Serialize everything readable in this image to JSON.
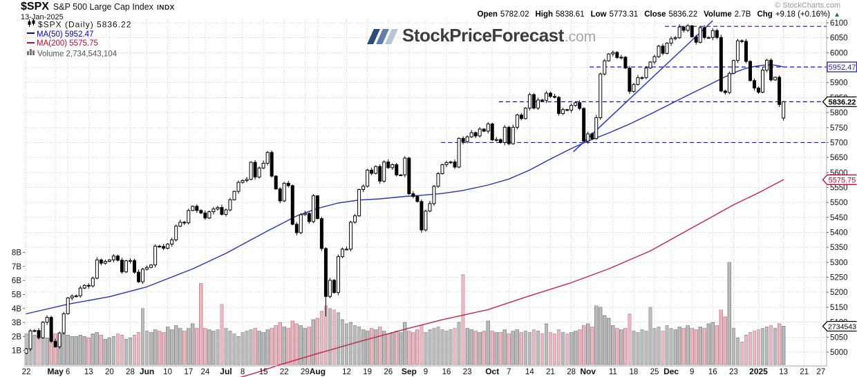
{
  "header": {
    "symbol": "$SPX",
    "name": "S&P 500 Large Cap Index",
    "exchange": "INDX",
    "date": "13-Jan-2025",
    "copyright": "© StockCharts.com",
    "quote": {
      "open_label": "Open",
      "open": "5782.02",
      "high_label": "High",
      "high": "5838.61",
      "low_label": "Low",
      "low": "5773.31",
      "close_label": "Close",
      "close": "5836.22",
      "volume_label": "Volume",
      "volume": "2.7B",
      "chg_label": "Chg",
      "chg": "+9.18 (+0.16%)",
      "direction_icon": "▲"
    }
  },
  "legend": {
    "series": "$SPX (Daily) 5836.22",
    "ma50": "MA(50) 5952.47",
    "ma200": "MA(200) 5575.75",
    "volume": "Volume 2,734,543,104"
  },
  "watermark": {
    "brand": "StockPriceForecast",
    "tld": ".com"
  },
  "colors": {
    "up_candle": "#ffffff",
    "down_candle": "#000000",
    "candle_stroke": "#000000",
    "ma50": "#2233bb",
    "ma200": "#cc2244",
    "dashed_line": "#1111cc",
    "trendline": "#2f3fd0",
    "vol_up_fill": "#bababa",
    "vol_up_stroke": "#8d8d8d",
    "vol_down_fill": "#eab8c0",
    "vol_down_stroke": "#c08a94",
    "grid": "#d6d6d6",
    "axis_line": "#aaaaaa",
    "axis_text": "#111111"
  },
  "chart_data": {
    "type": "candlestick+volume",
    "title": "$SPX S&P 500 Large Cap Index daily candles with MA(50), MA(200) and volume",
    "date_range": "22-Apr-2024 to 13-Jan-2025",
    "price_axis": {
      "min": 5000,
      "max": 6100,
      "step": 50
    },
    "price_ticks": [
      6100,
      6050,
      6000,
      5950,
      5900,
      5850,
      5800,
      5750,
      5700,
      5650,
      5600,
      5550,
      5500,
      5450,
      5400,
      5350,
      5300,
      5250,
      5200,
      5150,
      5100,
      5050,
      5000
    ],
    "volume_axis_ticks": [
      {
        "label": "8B",
        "v": 8
      },
      {
        "label": "7B",
        "v": 7
      },
      {
        "label": "6B",
        "v": 6
      },
      {
        "label": "5B",
        "v": 5
      },
      {
        "label": "4B",
        "v": 4
      },
      {
        "label": "3B",
        "v": 3
      },
      {
        "label": "2B",
        "v": 2
      },
      {
        "label": "1B",
        "v": 1
      }
    ],
    "x_ticks": [
      {
        "index": 0,
        "label": "22",
        "bold": false
      },
      {
        "index": 7,
        "label": "May",
        "bold": true
      },
      {
        "index": 10,
        "label": "6",
        "bold": false
      },
      {
        "index": 15,
        "label": "13",
        "bold": false
      },
      {
        "index": 20,
        "label": "20",
        "bold": false
      },
      {
        "index": 25,
        "label": "28",
        "bold": false
      },
      {
        "index": 29,
        "label": "Jun",
        "bold": true
      },
      {
        "index": 34,
        "label": "10",
        "bold": false
      },
      {
        "index": 39,
        "label": "17",
        "bold": false
      },
      {
        "index": 43,
        "label": "24",
        "bold": false
      },
      {
        "index": 48,
        "label": "Jul",
        "bold": true
      },
      {
        "index": 52,
        "label": "8",
        "bold": false
      },
      {
        "index": 57,
        "label": "15",
        "bold": false
      },
      {
        "index": 62,
        "label": "22",
        "bold": false
      },
      {
        "index": 67,
        "label": "29",
        "bold": false
      },
      {
        "index": 70,
        "label": "Aug",
        "bold": true
      },
      {
        "index": 77,
        "label": "12",
        "bold": false
      },
      {
        "index": 82,
        "label": "19",
        "bold": false
      },
      {
        "index": 87,
        "label": "26",
        "bold": false
      },
      {
        "index": 92,
        "label": "Sep",
        "bold": true
      },
      {
        "index": 96,
        "label": "9",
        "bold": false
      },
      {
        "index": 101,
        "label": "16",
        "bold": false
      },
      {
        "index": 106,
        "label": "23",
        "bold": false
      },
      {
        "index": 112,
        "label": "Oct",
        "bold": true
      },
      {
        "index": 116,
        "label": "7",
        "bold": false
      },
      {
        "index": 121,
        "label": "14",
        "bold": false
      },
      {
        "index": 126,
        "label": "21",
        "bold": false
      },
      {
        "index": 131,
        "label": "28",
        "bold": false
      },
      {
        "index": 135,
        "label": "Nov",
        "bold": true
      },
      {
        "index": 141,
        "label": "11",
        "bold": false
      },
      {
        "index": 146,
        "label": "18",
        "bold": false
      },
      {
        "index": 151,
        "label": "25",
        "bold": false
      },
      {
        "index": 155,
        "label": "Dec",
        "bold": true
      },
      {
        "index": 160,
        "label": "9",
        "bold": false
      },
      {
        "index": 165,
        "label": "16",
        "bold": false
      },
      {
        "index": 170,
        "label": "23",
        "bold": false
      },
      {
        "index": 176,
        "label": "2025",
        "bold": true
      },
      {
        "index": 182,
        "label": "13",
        "bold": false
      },
      {
        "index": 187,
        "label": "21",
        "bold": false
      },
      {
        "index": 191,
        "label": "27",
        "bold": false
      }
    ],
    "closes": [
      5011,
      5071,
      5072,
      5048,
      5100,
      5116,
      5036,
      5018,
      5064,
      5128,
      5181,
      5187,
      5188,
      5214,
      5223,
      5221,
      5247,
      5308,
      5297,
      5303,
      5308,
      5321,
      5307,
      5268,
      5305,
      5306,
      5267,
      5235,
      5277,
      5283,
      5291,
      5354,
      5353,
      5347,
      5361,
      5375,
      5421,
      5434,
      5432,
      5473,
      5487,
      5473,
      5465,
      5448,
      5469,
      5478,
      5483,
      5460,
      5475,
      5509,
      5537,
      5567,
      5573,
      5577,
      5634,
      5585,
      5615,
      5631,
      5667,
      5588,
      5545,
      5505,
      5564,
      5556,
      5427,
      5399,
      5459,
      5463,
      5436,
      5522,
      5446,
      5346,
      5186,
      5240,
      5199,
      5319,
      5344,
      5344,
      5434,
      5455,
      5543,
      5554,
      5608,
      5597,
      5620,
      5571,
      5635,
      5616,
      5626,
      5592,
      5592,
      5648,
      5529,
      5520,
      5503,
      5408,
      5471,
      5496,
      5554,
      5596,
      5626,
      5633,
      5635,
      5618,
      5714,
      5703,
      5719,
      5733,
      5722,
      5745,
      5738,
      5762,
      5709,
      5710,
      5700,
      5751,
      5696,
      5751,
      5792,
      5780,
      5815,
      5860,
      5815,
      5842,
      5841,
      5865,
      5854,
      5851,
      5797,
      5810,
      5808,
      5824,
      5833,
      5814,
      5705,
      5729,
      5713,
      5783,
      5929,
      5973,
      5996,
      6001,
      5984,
      5985,
      5949,
      5871,
      5894,
      5917,
      5917,
      5949,
      5969,
      5987,
      6022,
      5998,
      6032,
      6047,
      6050,
      6086,
      6075,
      6090,
      6053,
      6035,
      6084,
      6051,
      6051,
      6074,
      6051,
      5872,
      5867,
      5931,
      5974,
      6040,
      6038,
      5971,
      5907,
      5882,
      5868,
      5942,
      5975,
      5909,
      5918,
      5827,
      5836.22
    ],
    "volumes_billions": [
      2.2,
      2.0,
      2.1,
      2.3,
      2.2,
      1.9,
      2.1,
      2.2,
      2.1,
      2.2,
      2.1,
      2.0,
      2.0,
      2.1,
      2.0,
      1.9,
      2.2,
      2.3,
      2.1,
      1.8,
      1.9,
      2.0,
      2.2,
      2.1,
      1.8,
      1.9,
      2.1,
      2.3,
      4.0,
      2.4,
      2.3,
      2.5,
      2.4,
      2.3,
      2.7,
      2.5,
      2.8,
      2.6,
      2.4,
      2.6,
      2.9,
      2.6,
      5.8,
      2.6,
      2.5,
      2.4,
      2.5,
      4.3,
      2.6,
      2.4,
      2.2,
      2.0,
      2.3,
      2.4,
      2.5,
      2.6,
      2.4,
      2.3,
      2.5,
      2.6,
      2.8,
      3.0,
      2.7,
      2.6,
      3.1,
      2.9,
      2.8,
      2.6,
      2.7,
      3.2,
      3.3,
      3.8,
      4.2,
      4.0,
      3.9,
      3.7,
      3.2,
      2.9,
      3.0,
      2.8,
      2.7,
      2.5,
      2.4,
      2.6,
      2.5,
      2.7,
      2.4,
      2.2,
      2.3,
      2.4,
      2.3,
      3.0,
      2.4,
      2.3,
      2.5,
      2.8,
      2.3,
      2.5,
      2.6,
      2.7,
      2.5,
      2.4,
      2.5,
      2.6,
      3.0,
      6.4,
      2.6,
      2.5,
      2.4,
      2.3,
      2.4,
      3.1,
      2.4,
      2.3,
      2.3,
      2.5,
      2.2,
      2.4,
      2.5,
      2.3,
      2.4,
      2.3,
      2.5,
      2.4,
      2.2,
      2.9,
      2.3,
      2.2,
      2.5,
      2.3,
      2.2,
      2.3,
      2.4,
      2.5,
      2.8,
      2.9,
      2.7,
      4.2,
      4.1,
      3.5,
      3.3,
      2.8,
      2.6,
      2.5,
      2.6,
      3.6,
      2.4,
      2.3,
      2.5,
      2.4,
      4.1,
      2.6,
      2.7,
      2.4,
      2.8,
      2.6,
      2.5,
      2.7,
      2.6,
      2.8,
      2.6,
      2.5,
      2.7,
      2.6,
      2.9,
      3.0,
      2.8,
      3.9,
      3.4,
      7.3,
      2.6,
      1.9,
      1.6,
      2.1,
      2.3,
      2.4,
      2.5,
      2.6,
      2.7,
      2.8,
      2.6,
      2.9,
      2.73
    ],
    "first_open": 4996,
    "wick_overrides": {
      "72": {
        "high": 5350,
        "low": 5119
      }
    },
    "last_candle": {
      "open": 5782.02,
      "high": 5838.61,
      "low": 5773.31,
      "close": 5836.22
    },
    "ma50_points": [
      [
        0,
        5128
      ],
      [
        10,
        5160
      ],
      [
        20,
        5185
      ],
      [
        29,
        5218
      ],
      [
        40,
        5278
      ],
      [
        48,
        5330
      ],
      [
        58,
        5405
      ],
      [
        65,
        5455
      ],
      [
        70,
        5480
      ],
      [
        75,
        5498
      ],
      [
        80,
        5508
      ],
      [
        85,
        5512
      ],
      [
        91,
        5520
      ],
      [
        95,
        5524
      ],
      [
        100,
        5530
      ],
      [
        105,
        5540
      ],
      [
        111,
        5558
      ],
      [
        116,
        5578
      ],
      [
        121,
        5608
      ],
      [
        126,
        5645
      ],
      [
        131,
        5680
      ],
      [
        135,
        5705
      ],
      [
        140,
        5732
      ],
      [
        145,
        5762
      ],
      [
        150,
        5795
      ],
      [
        154,
        5823
      ],
      [
        159,
        5858
      ],
      [
        164,
        5892
      ],
      [
        167,
        5913
      ],
      [
        169,
        5926
      ],
      [
        171,
        5938
      ],
      [
        173,
        5948
      ],
      [
        175,
        5954
      ],
      [
        177,
        5958
      ],
      [
        179,
        5960
      ],
      [
        181,
        5956
      ],
      [
        182,
        5952.47
      ]
    ],
    "ma200_points": [
      [
        45,
        4890
      ],
      [
        55,
        4930
      ],
      [
        61,
        4958
      ],
      [
        70,
        4995
      ],
      [
        80,
        5035
      ],
      [
        92,
        5080
      ],
      [
        100,
        5108
      ],
      [
        111,
        5142
      ],
      [
        121,
        5188
      ],
      [
        131,
        5232
      ],
      [
        140,
        5278
      ],
      [
        150,
        5338
      ],
      [
        160,
        5415
      ],
      [
        170,
        5492
      ],
      [
        176,
        5532
      ],
      [
        182,
        5575.75
      ]
    ],
    "trendline": {
      "from_index": 131.5,
      "from_price": 5669,
      "to_index": 165,
      "to_price": 6107
    },
    "hlines": [
      {
        "price": 6088,
        "from_index": 153.5
      },
      {
        "price": 5952.47,
        "from_index": 135.4
      },
      {
        "price": 5836.22,
        "from_index": 113.6
      },
      {
        "price": 5700,
        "from_index": 99.7
      }
    ],
    "price_label_boxes": [
      {
        "text": "5952.47",
        "price": 5952.47,
        "color": "#2222aa",
        "bold": false,
        "arrow": false
      },
      {
        "text": "5836.22",
        "price": 5836.22,
        "color": "#000000",
        "bold": true,
        "arrow": true
      },
      {
        "text": "5575.75",
        "price": 5575.75,
        "color": "#cc0033",
        "bold": false,
        "arrow": true
      }
    ],
    "volume_label_box": {
      "text": "2734543",
      "v": 2.734
    },
    "legend_position": "top-left",
    "grid": true
  }
}
